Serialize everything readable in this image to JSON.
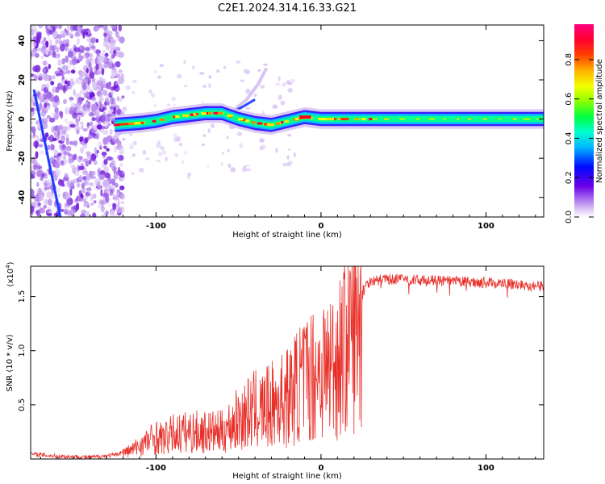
{
  "title": "C2E1.2024.314.16.33.G21",
  "chart_data": [
    {
      "type": "heatmap",
      "xlabel": "Height of straight line (km)",
      "ylabel": "Frequency (Hz)",
      "xlim": [
        -176,
        135
      ],
      "ylim": [
        -50,
        48
      ],
      "xticks": [
        "-100",
        "0",
        "100"
      ],
      "yticks": [
        "-40",
        "-20",
        "0",
        "20",
        "40"
      ],
      "colorbar": {
        "label": "Normalized spectral amplitude",
        "ticks": [
          "0.0",
          "0.2",
          "0.4",
          "0.6",
          "0.8"
        ],
        "range": [
          0,
          0.98
        ]
      },
      "ridge": {
        "description_free": true,
        "points": [
          {
            "x": -125,
            "y": -3
          },
          {
            "x": -110,
            "y": -2
          },
          {
            "x": -100,
            "y": -1
          },
          {
            "x": -90,
            "y": 1
          },
          {
            "x": -80,
            "y": 2
          },
          {
            "x": -70,
            "y": 3
          },
          {
            "x": -60,
            "y": 3
          },
          {
            "x": -50,
            "y": 0
          },
          {
            "x": -40,
            "y": -2
          },
          {
            "x": -30,
            "y": -3
          },
          {
            "x": -20,
            "y": -1
          },
          {
            "x": -10,
            "y": 1
          },
          {
            "x": 0,
            "y": 0
          },
          {
            "x": 20,
            "y": 0
          },
          {
            "x": 60,
            "y": 0
          },
          {
            "x": 100,
            "y": 0
          },
          {
            "x": 135,
            "y": 0
          }
        ]
      }
    },
    {
      "type": "line",
      "xlabel": "Height of straight line (km)",
      "ylabel": "SNR (10 * v/v)",
      "yscale_note": "(x10^4)",
      "xlim": [
        -176,
        135
      ],
      "ylim": [
        0,
        1.78
      ],
      "xticks": [
        "-100",
        "0",
        "100"
      ],
      "yticks": [
        "0.5",
        "1.0",
        "1.5"
      ],
      "color": "#e8302a",
      "series": [
        {
          "x": [
            -176,
            -160,
            -140,
            -125,
            -115,
            -105,
            -100,
            -95,
            -90,
            -80,
            -70,
            -60,
            -50,
            -45,
            -40,
            -35,
            -30,
            -25,
            -20,
            -15,
            -10,
            -5,
            0,
            5,
            10,
            15,
            20,
            25,
            30,
            40,
            50,
            60,
            80,
            100,
            120,
            135
          ],
          "y": [
            0.05,
            0.03,
            0.02,
            0.04,
            0.1,
            0.2,
            0.25,
            0.22,
            0.28,
            0.3,
            0.3,
            0.3,
            0.45,
            0.5,
            0.55,
            0.55,
            0.6,
            0.65,
            0.7,
            0.8,
            0.9,
            0.95,
            1.0,
            1.05,
            1.1,
            1.35,
            1.5,
            1.6,
            1.65,
            1.67,
            1.67,
            1.66,
            1.65,
            1.64,
            1.62,
            1.6
          ]
        }
      ]
    }
  ]
}
